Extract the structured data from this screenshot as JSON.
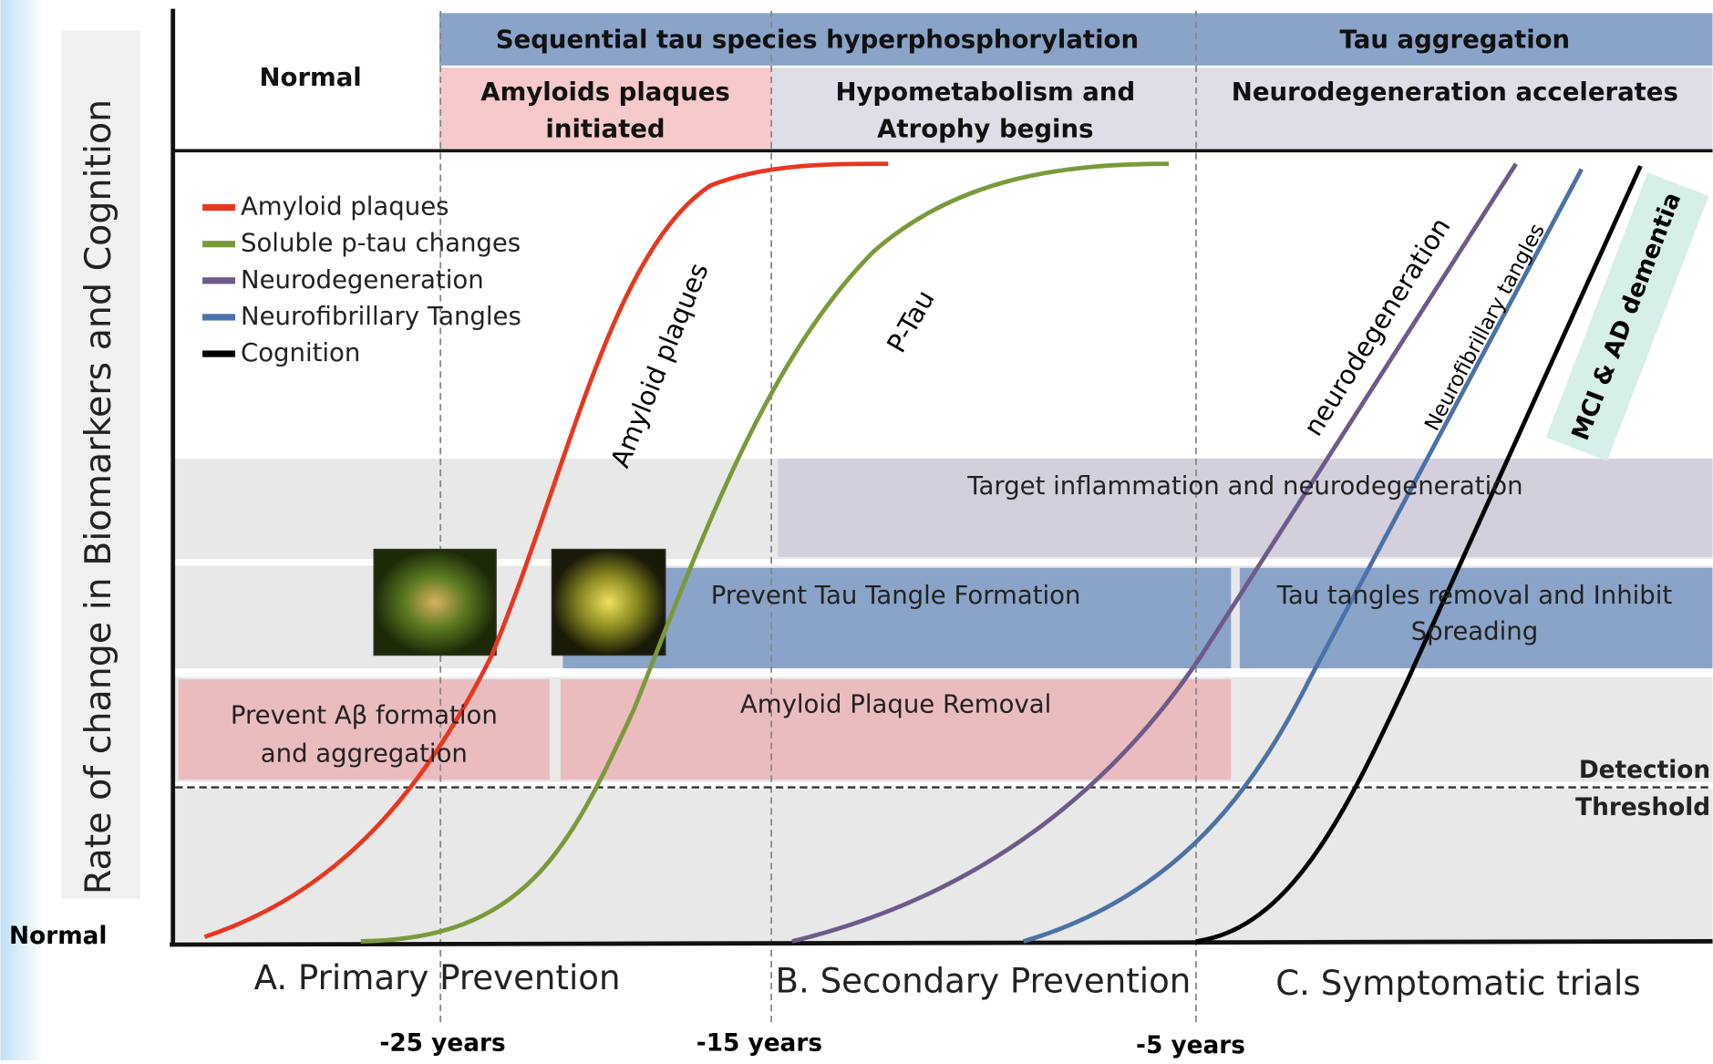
{
  "y_axis": {
    "label": "Rate of change in Biomarkers and Cognition",
    "baseline": "Normal"
  },
  "header": {
    "top": [
      "Sequential tau species hyperphosphorylation",
      "Tau aggregation"
    ],
    "stages": [
      {
        "lines": [
          "Normal"
        ]
      },
      {
        "lines": [
          "Amyloids plaques",
          "initiated"
        ]
      },
      {
        "lines": [
          "Hypometabolism and",
          "Atrophy begins"
        ]
      },
      {
        "lines": [
          "Neurodegeneration accelerates"
        ]
      }
    ]
  },
  "legend": [
    {
      "name": "Amyloid plaques",
      "color": "#e8371f"
    },
    {
      "name": "Soluble p-tau changes",
      "color": "#7a9a3a"
    },
    {
      "name": "Neurodegeneration",
      "color": "#6e5a8a"
    },
    {
      "name": "Neurofibrillary Tangles",
      "color": "#4a72a8"
    },
    {
      "name": "Cognition",
      "color": "#000000"
    }
  ],
  "curve_labels": [
    "Amyloid plaques",
    "P-Tau",
    "neurodegeneration",
    "Neurofibrillary tangles",
    "MCI & AD dementia"
  ],
  "interventions": {
    "inflammation": [
      "Target inflammation and neurodegeneration"
    ],
    "tau_prevent": [
      "Prevent Tau Tangle Formation"
    ],
    "tau_removal": [
      "Tau tangles removal and Inhibit",
      "Spreading"
    ],
    "abeta_prevent": [
      "Prevent Aβ formation",
      "and aggregation"
    ],
    "amyloid_removal": [
      "Amyloid Plaque Removal"
    ]
  },
  "threshold": [
    "Detection",
    "Threshold"
  ],
  "phases": [
    "A. Primary Prevention",
    "B. Secondary Prevention",
    "C. Symptomatic trials"
  ],
  "timeline": [
    "-25 years",
    "-15 years",
    "-5 years"
  ]
}
